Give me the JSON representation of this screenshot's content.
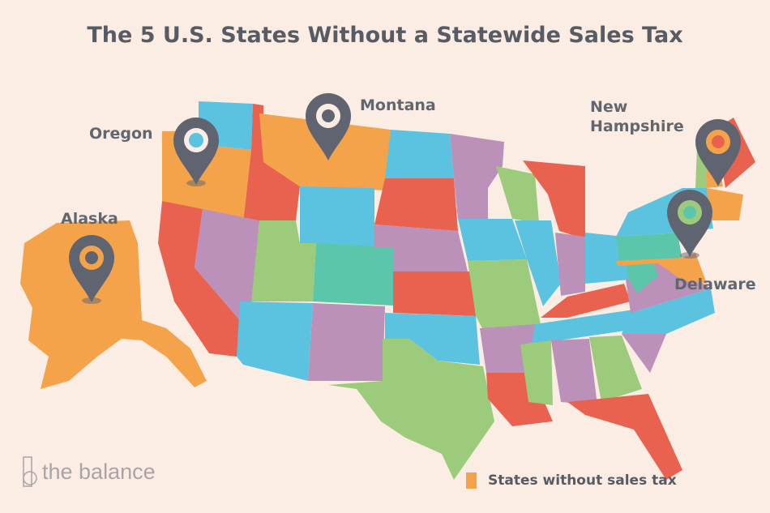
{
  "title": "The 5 U.S. States Without a Statewide Sales Tax",
  "labels": {
    "alaska": "Alaska",
    "oregon": "Oregon",
    "montana": "Montana",
    "new_hampshire_1": "New",
    "new_hampshire_2": "Hampshire",
    "delaware": "Delaware"
  },
  "legend": {
    "label": "States without sales tax",
    "color": "#f5a34a"
  },
  "logo": {
    "text": "the balance"
  },
  "colors": {
    "background": "#fcede4",
    "orange": "#f5a34a",
    "red": "#e8624f",
    "blue": "#5bc3e0",
    "green": "#9ccb7c",
    "purple": "#bb90b9",
    "teal": "#5cc6aa",
    "pin": "#5f6470"
  },
  "highlighted_states": [
    "Alaska",
    "Oregon",
    "Montana",
    "New Hampshire",
    "Delaware"
  ]
}
